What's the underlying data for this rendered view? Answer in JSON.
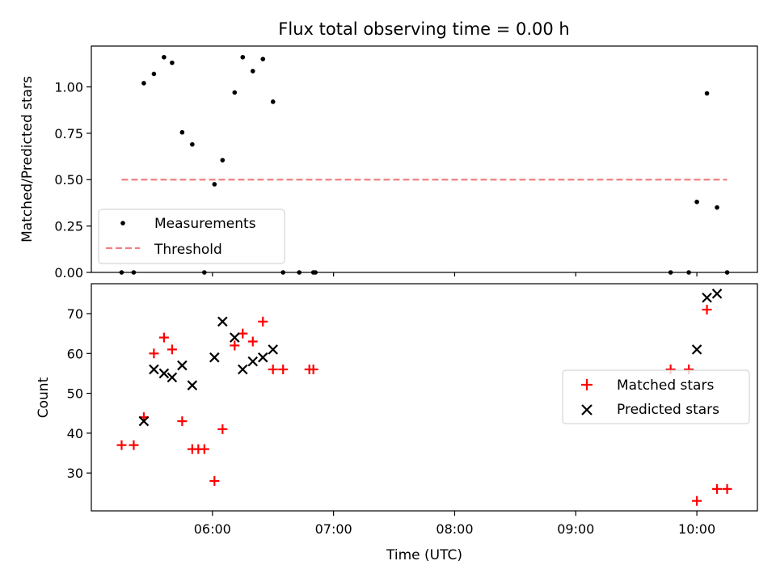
{
  "chart_data": [
    {
      "type": "scatter",
      "title": "Flux total observing time = 0.00 h",
      "xlabel": "",
      "ylabel": "Matched/Predicted stars",
      "ylim": [
        0,
        1.22
      ],
      "yticks": [
        "0.00",
        "0.25",
        "0.50",
        "0.75",
        "1.00"
      ],
      "ytick_values": [
        0,
        0.25,
        0.5,
        0.75,
        1.0
      ],
      "legend_position": "lower-left",
      "series": [
        {
          "name": "Measurements",
          "color": "#000000",
          "marker": "dot",
          "x": [
            "05:15",
            "05:21",
            "05:26",
            "05:31",
            "05:36",
            "05:40",
            "05:45",
            "05:50",
            "05:56",
            "06:01",
            "06:05",
            "06:11",
            "06:15",
            "06:20",
            "06:25",
            "06:30",
            "06:35",
            "06:43",
            "06:50",
            "06:51",
            "09:47",
            "09:56",
            "10:00",
            "10:05",
            "10:10",
            "10:15"
          ],
          "y": [
            0,
            0,
            1.02,
            1.07,
            1.16,
            1.13,
            0.755,
            0.69,
            0,
            0.475,
            0.605,
            0.97,
            1.16,
            1.085,
            1.15,
            0.92,
            0,
            0,
            0,
            0,
            0,
            0,
            0.38,
            0.965,
            0.35,
            0
          ]
        },
        {
          "name": "Threshold",
          "color": "#f08080",
          "style": "dashed",
          "x": [
            "05:15",
            "10:15"
          ],
          "y": [
            0.5,
            0.5
          ]
        }
      ]
    },
    {
      "type": "scatter",
      "xlabel": "Time (UTC)",
      "ylabel": "Count",
      "ylim": [
        20.5,
        77.5
      ],
      "yticks": [
        "30",
        "40",
        "50",
        "60",
        "70"
      ],
      "ytick_values": [
        30,
        40,
        50,
        60,
        70
      ],
      "xlim": [
        "05:00",
        "10:30"
      ],
      "xticks": [
        "06:00",
        "07:00",
        "08:00",
        "09:00",
        "10:00"
      ],
      "legend_position": "center-right",
      "series": [
        {
          "name": "Matched stars",
          "color": "#ff0000",
          "marker": "plus",
          "x": [
            "05:15",
            "05:21",
            "05:26",
            "05:31",
            "05:36",
            "05:40",
            "05:45",
            "05:50",
            "05:53",
            "05:56",
            "06:01",
            "06:05",
            "06:11",
            "06:15",
            "06:20",
            "06:25",
            "06:30",
            "06:35",
            "06:48",
            "06:50",
            "09:47",
            "09:56",
            "10:00",
            "10:05",
            "10:10",
            "10:15"
          ],
          "y": [
            37,
            37,
            44,
            60,
            64,
            61,
            43,
            36,
            36,
            36,
            28,
            41,
            62,
            65,
            63,
            68,
            56,
            56,
            56,
            56,
            56,
            56,
            23,
            71,
            26,
            26
          ]
        },
        {
          "name": "Predicted stars",
          "color": "#000000",
          "marker": "x",
          "x": [
            "05:26",
            "05:31",
            "05:36",
            "05:40",
            "05:45",
            "05:50",
            "06:01",
            "06:05",
            "06:11",
            "06:15",
            "06:20",
            "06:25",
            "06:30",
            "10:00",
            "10:05",
            "10:10"
          ],
          "y": [
            43,
            56,
            55,
            54,
            57,
            52,
            59,
            68,
            64,
            56,
            58,
            59,
            61,
            61,
            74,
            75
          ]
        }
      ]
    }
  ]
}
